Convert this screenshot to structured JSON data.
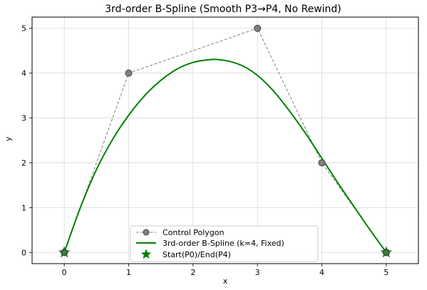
{
  "chart_data": {
    "type": "line",
    "title": "3rd-order B-Spline (Smooth P3→P4, No Rewind)",
    "xlabel": "x",
    "ylabel": "y",
    "xlim": [
      -0.5,
      5.5
    ],
    "ylim": [
      -0.25,
      5.25
    ],
    "xticks": [
      0,
      1,
      2,
      3,
      4,
      5
    ],
    "yticks": [
      0,
      1,
      2,
      3,
      4,
      5
    ],
    "grid": true,
    "legend_position": "bottom-center",
    "series": [
      {
        "name": "Control Polygon",
        "style": "dashed-with-markers",
        "color": "#808080",
        "x": [
          0,
          1,
          3,
          4,
          5
        ],
        "y": [
          0,
          4,
          5,
          2,
          0
        ]
      },
      {
        "name": "3rd-order B-Spline (k=4, Fixed)",
        "style": "solid",
        "color": "#008000",
        "x": [
          0,
          0.25,
          0.5,
          0.75,
          1.0,
          1.25,
          1.5,
          1.75,
          2.0,
          2.25,
          2.4,
          2.6,
          2.8,
          3.0,
          3.25,
          3.5,
          3.75,
          4.0,
          4.25,
          4.5,
          4.75,
          5.0
        ],
        "y": [
          0,
          1.0,
          1.85,
          2.52,
          3.06,
          3.5,
          3.84,
          4.09,
          4.24,
          4.3,
          4.3,
          4.25,
          4.14,
          3.95,
          3.6,
          3.15,
          2.65,
          2.1,
          1.55,
          1.02,
          0.5,
          0
        ]
      },
      {
        "name": "Start(P0)/End(P4)",
        "style": "star-markers",
        "color": "#008000",
        "x": [
          0,
          5
        ],
        "y": [
          0,
          0
        ]
      }
    ]
  }
}
